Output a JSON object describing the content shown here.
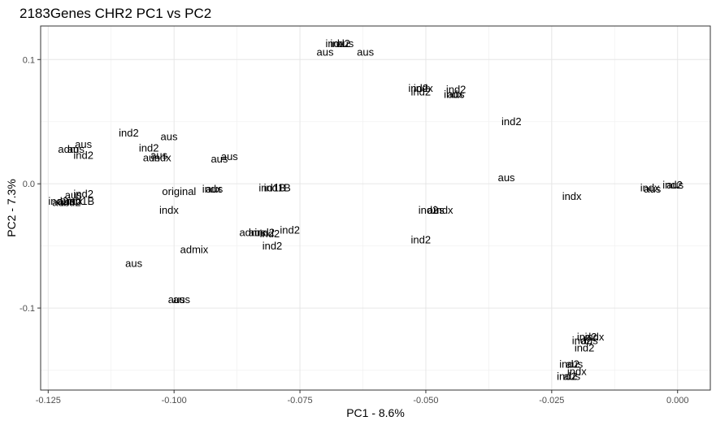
{
  "chart_data": {
    "type": "scatter",
    "title": "2183Genes CHR2 PC1 vs PC2",
    "xlabel": "PC1 - 8.6%",
    "ylabel": "PC2 - 7.3%",
    "xlim": [
      -0.1265,
      0.0065
    ],
    "ylim": [
      -0.166,
      0.127
    ],
    "x_ticks": [
      -0.125,
      -0.1,
      -0.075,
      -0.05,
      -0.025,
      0.0
    ],
    "x_tick_labels": [
      "-0.125",
      "-0.100",
      "-0.075",
      "-0.050",
      "-0.025",
      "0.000"
    ],
    "y_ticks": [
      -0.1,
      0.0,
      0.1
    ],
    "y_tick_labels": [
      "-0.1",
      "0.0",
      "0.1"
    ],
    "grid": true,
    "marker": "text-label",
    "points": [
      {
        "x": -0.068,
        "y": 0.113,
        "label": "indx"
      },
      {
        "x": -0.067,
        "y": 0.113,
        "label": "ind2"
      },
      {
        "x": -0.066,
        "y": 0.113,
        "label": "aus"
      },
      {
        "x": -0.07,
        "y": 0.106,
        "label": "aus"
      },
      {
        "x": -0.062,
        "y": 0.106,
        "label": "aus"
      },
      {
        "x": -0.0515,
        "y": 0.077,
        "label": "ind2"
      },
      {
        "x": -0.0505,
        "y": 0.077,
        "label": "indx"
      },
      {
        "x": -0.051,
        "y": 0.074,
        "label": "ind2"
      },
      {
        "x": -0.044,
        "y": 0.076,
        "label": "ind2"
      },
      {
        "x": -0.0445,
        "y": 0.072,
        "label": "indx"
      },
      {
        "x": -0.044,
        "y": 0.072,
        "label": "aus"
      },
      {
        "x": -0.033,
        "y": 0.05,
        "label": "ind2"
      },
      {
        "x": -0.109,
        "y": 0.041,
        "label": "ind2"
      },
      {
        "x": -0.101,
        "y": 0.038,
        "label": "aus"
      },
      {
        "x": -0.118,
        "y": 0.032,
        "label": "aus"
      },
      {
        "x": -0.121,
        "y": 0.028,
        "label": "adm"
      },
      {
        "x": -0.1195,
        "y": 0.028,
        "label": "aus"
      },
      {
        "x": -0.118,
        "y": 0.023,
        "label": "ind2"
      },
      {
        "x": -0.105,
        "y": 0.029,
        "label": "ind2"
      },
      {
        "x": -0.103,
        "y": 0.023,
        "label": "aus"
      },
      {
        "x": -0.1045,
        "y": 0.021,
        "label": "aus"
      },
      {
        "x": -0.1025,
        "y": 0.021,
        "label": "indx"
      },
      {
        "x": -0.089,
        "y": 0.022,
        "label": "aus"
      },
      {
        "x": -0.091,
        "y": 0.02,
        "label": "aus"
      },
      {
        "x": -0.034,
        "y": 0.005,
        "label": "aus"
      },
      {
        "x": -0.0925,
        "y": -0.004,
        "label": "indx"
      },
      {
        "x": -0.092,
        "y": -0.004,
        "label": "aus"
      },
      {
        "x": -0.0805,
        "y": -0.003,
        "label": "ind1B"
      },
      {
        "x": -0.0795,
        "y": -0.003,
        "label": "ind1B"
      },
      {
        "x": -0.099,
        "y": -0.006,
        "label": "original"
      },
      {
        "x": -0.118,
        "y": -0.008,
        "label": "ind2"
      },
      {
        "x": -0.12,
        "y": -0.009,
        "label": "aus"
      },
      {
        "x": -0.123,
        "y": -0.014,
        "label": "ind2"
      },
      {
        "x": -0.1215,
        "y": -0.014,
        "label": "aus"
      },
      {
        "x": -0.12,
        "y": -0.014,
        "label": "indx"
      },
      {
        "x": -0.1185,
        "y": -0.014,
        "label": "ind1B"
      },
      {
        "x": -0.1225,
        "y": -0.015,
        "label": "aus"
      },
      {
        "x": -0.1205,
        "y": -0.015,
        "label": "ind2"
      },
      {
        "x": -0.021,
        "y": -0.01,
        "label": "indx"
      },
      {
        "x": -0.0055,
        "y": -0.003,
        "label": "indx"
      },
      {
        "x": -0.005,
        "y": -0.004,
        "label": "aus"
      },
      {
        "x": -0.001,
        "y": -0.001,
        "label": "ind2"
      },
      {
        "x": -0.0005,
        "y": -0.001,
        "label": "aus"
      },
      {
        "x": -0.101,
        "y": -0.021,
        "label": "indx"
      },
      {
        "x": -0.0495,
        "y": -0.021,
        "label": "ind2"
      },
      {
        "x": -0.048,
        "y": -0.021,
        "label": "aus"
      },
      {
        "x": -0.0465,
        "y": -0.021,
        "label": "indx"
      },
      {
        "x": -0.085,
        "y": -0.039,
        "label": "adm"
      },
      {
        "x": -0.0835,
        "y": -0.039,
        "label": "aus"
      },
      {
        "x": -0.082,
        "y": -0.039,
        "label": "ind2"
      },
      {
        "x": -0.081,
        "y": -0.04,
        "label": "ind2"
      },
      {
        "x": -0.077,
        "y": -0.037,
        "label": "ind2"
      },
      {
        "x": -0.051,
        "y": -0.045,
        "label": "ind2"
      },
      {
        "x": -0.0805,
        "y": -0.05,
        "label": "ind2"
      },
      {
        "x": -0.096,
        "y": -0.053,
        "label": "admix"
      },
      {
        "x": -0.108,
        "y": -0.064,
        "label": "aus"
      },
      {
        "x": -0.0995,
        "y": -0.093,
        "label": "aus"
      },
      {
        "x": -0.0985,
        "y": -0.093,
        "label": "aus"
      },
      {
        "x": -0.018,
        "y": -0.123,
        "label": "ind2"
      },
      {
        "x": -0.0165,
        "y": -0.123,
        "label": "indx"
      },
      {
        "x": -0.019,
        "y": -0.126,
        "label": "ind2"
      },
      {
        "x": -0.0175,
        "y": -0.126,
        "label": "aus"
      },
      {
        "x": -0.0185,
        "y": -0.132,
        "label": "ind2"
      },
      {
        "x": -0.0215,
        "y": -0.145,
        "label": "ind2"
      },
      {
        "x": -0.0205,
        "y": -0.145,
        "label": "aus"
      },
      {
        "x": -0.02,
        "y": -0.151,
        "label": "indx"
      },
      {
        "x": -0.022,
        "y": -0.155,
        "label": "ind2"
      },
      {
        "x": -0.021,
        "y": -0.155,
        "label": "aus"
      }
    ]
  }
}
